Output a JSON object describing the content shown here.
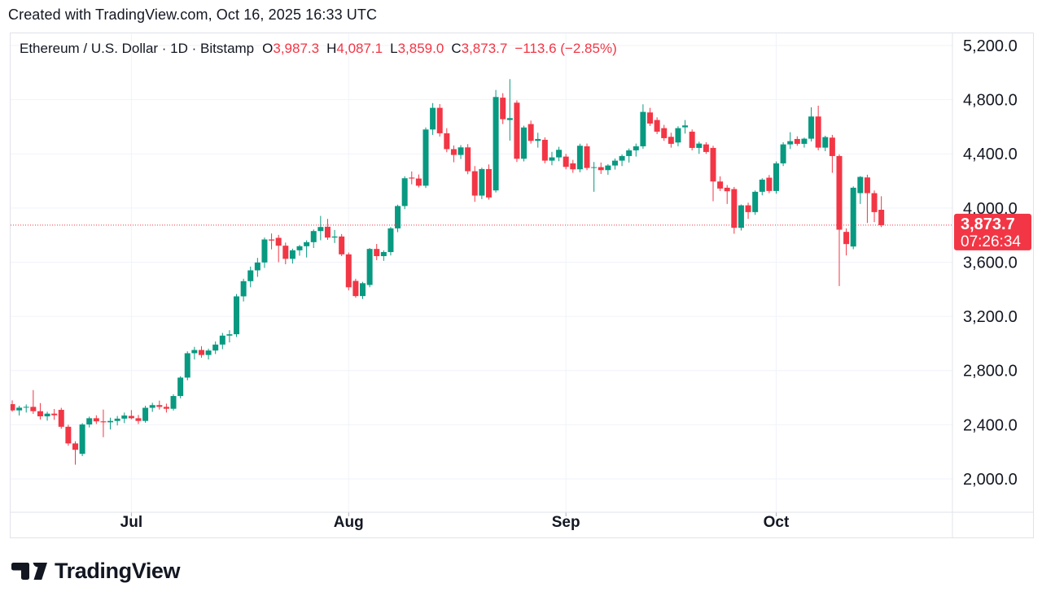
{
  "page": {
    "created_note": "Created with TradingView.com, Oct 16, 2025 16:33 UTC"
  },
  "legend": {
    "title": "Ethereum / U.S. Dollar · 1D · Bitstamp",
    "open_label": "O",
    "open": "3,987.3",
    "high_label": "H",
    "high": "4,087.1",
    "low_label": "L",
    "low": "3,859.0",
    "close_label": "C",
    "close": "3,873.7",
    "change": "−113.6 (−2.85%)"
  },
  "price_axis": {
    "ticks": [
      {
        "label": "5,200.0",
        "value": 5200
      },
      {
        "label": "4,800.0",
        "value": 4800
      },
      {
        "label": "4,400.0",
        "value": 4400
      },
      {
        "label": "4,000.0",
        "value": 4000
      },
      {
        "label": "3,600.0",
        "value": 3600
      },
      {
        "label": "3,200.0",
        "value": 3200
      },
      {
        "label": "2,800.0",
        "value": 2800
      },
      {
        "label": "2,400.0",
        "value": 2400
      },
      {
        "label": "2,000.0",
        "value": 2000
      }
    ],
    "badge": {
      "price": "3,873.7",
      "countdown": "07:26:34"
    }
  },
  "time_axis": {
    "months": [
      {
        "label": "Jul",
        "candle_index": 17
      },
      {
        "label": "Aug",
        "candle_index": 48
      },
      {
        "label": "Sep",
        "candle_index": 79
      },
      {
        "label": "Oct",
        "candle_index": 109
      }
    ]
  },
  "footer": {
    "logo_text": "TradingView"
  },
  "colors": {
    "up": "#089981",
    "down": "#f23645",
    "grid": "#f0f3fa",
    "border": "#e0e3eb",
    "text": "#131722",
    "tick": "#b2b5be",
    "badge_bg": "#f23645",
    "badge_text": "#ffffff"
  },
  "chart_data": {
    "type": "candlestick",
    "title": "Ethereum / U.S. Dollar · 1D · Bitstamp",
    "legend_position": "top-left",
    "grid": true,
    "y_axis_side": "right",
    "ylim": [
      1740,
      5290
    ],
    "y_tick_step": 400,
    "last_price": 3873.7,
    "countdown": "07:26:34",
    "current_bar": {
      "open": 3987.3,
      "high": 4087.1,
      "low": 3859.0,
      "close": 3873.7,
      "change": -113.6,
      "change_pct": -2.85
    },
    "candles": [
      [
        2552,
        2580,
        2496,
        2506
      ],
      [
        2506,
        2540,
        2468,
        2526
      ],
      [
        2526,
        2550,
        2490,
        2532
      ],
      [
        2532,
        2656,
        2480,
        2500
      ],
      [
        2500,
        2560,
        2438,
        2462
      ],
      [
        2462,
        2496,
        2430,
        2482
      ],
      [
        2482,
        2516,
        2436,
        2470
      ],
      [
        2510,
        2525,
        2370,
        2385
      ],
      [
        2385,
        2400,
        2245,
        2262
      ],
      [
        2262,
        2278,
        2105,
        2215
      ],
      [
        2185,
        2412,
        2168,
        2402
      ],
      [
        2402,
        2460,
        2380,
        2448
      ],
      [
        2448,
        2470,
        2405,
        2425
      ],
      [
        2425,
        2512,
        2308,
        2418
      ],
      [
        2418,
        2452,
        2365,
        2428
      ],
      [
        2428,
        2465,
        2395,
        2445
      ],
      [
        2445,
        2490,
        2412,
        2468
      ],
      [
        2465,
        2508,
        2440,
        2448
      ],
      [
        2448,
        2472,
        2405,
        2428
      ],
      [
        2428,
        2540,
        2415,
        2525
      ],
      [
        2525,
        2562,
        2495,
        2545
      ],
      [
        2545,
        2578,
        2512,
        2532
      ],
      [
        2532,
        2556,
        2490,
        2518
      ],
      [
        2518,
        2625,
        2505,
        2612
      ],
      [
        2612,
        2758,
        2595,
        2748
      ],
      [
        2748,
        2942,
        2728,
        2928
      ],
      [
        2928,
        2975,
        2882,
        2952
      ],
      [
        2952,
        2980,
        2895,
        2915
      ],
      [
        2915,
        2962,
        2882,
        2948
      ],
      [
        2948,
        3015,
        2922,
        2992
      ],
      [
        2992,
        3078,
        2958,
        3058
      ],
      [
        3058,
        3098,
        3008,
        3068
      ],
      [
        3068,
        3365,
        3048,
        3348
      ],
      [
        3348,
        3478,
        3310,
        3460
      ],
      [
        3460,
        3568,
        3415,
        3540
      ],
      [
        3540,
        3632,
        3492,
        3598
      ],
      [
        3598,
        3782,
        3558,
        3768
      ],
      [
        3768,
        3812,
        3695,
        3760
      ],
      [
        3780,
        3802,
        3600,
        3722
      ],
      [
        3722,
        3745,
        3585,
        3625
      ],
      [
        3625,
        3700,
        3590,
        3688
      ],
      [
        3688,
        3728,
        3648,
        3718
      ],
      [
        3718,
        3762,
        3635,
        3748
      ],
      [
        3748,
        3842,
        3705,
        3830
      ],
      [
        3830,
        3942,
        3762,
        3860
      ],
      [
        3862,
        3920,
        3765,
        3782
      ],
      [
        3782,
        3838,
        3742,
        3790
      ],
      [
        3790,
        3808,
        3645,
        3658
      ],
      [
        3658,
        3672,
        3392,
        3415
      ],
      [
        3462,
        3478,
        3338,
        3350
      ],
      [
        3350,
        3455,
        3328,
        3445
      ],
      [
        3432,
        3705,
        3415,
        3698
      ],
      [
        3698,
        3735,
        3615,
        3645
      ],
      [
        3645,
        3688,
        3610,
        3675
      ],
      [
        3675,
        3860,
        3650,
        3850
      ],
      [
        3850,
        4025,
        3822,
        4015
      ],
      [
        4015,
        4235,
        3992,
        4220
      ],
      [
        4225,
        4270,
        4175,
        4218
      ],
      [
        4218,
        4248,
        4152,
        4165
      ],
      [
        4165,
        4595,
        4148,
        4580
      ],
      [
        4580,
        4775,
        4540,
        4740
      ],
      [
        4740,
        4768,
        4528,
        4552
      ],
      [
        4552,
        4590,
        4412,
        4435
      ],
      [
        4435,
        4462,
        4338,
        4392
      ],
      [
        4392,
        4465,
        4362,
        4448
      ],
      [
        4448,
        4472,
        4250,
        4272
      ],
      [
        4272,
        4310,
        4046,
        4092
      ],
      [
        4092,
        4298,
        4066,
        4288
      ],
      [
        4288,
        4322,
        4062,
        4078
      ],
      [
        4130,
        4872,
        4115,
        4820
      ],
      [
        4815,
        4848,
        4620,
        4656
      ],
      [
        4650,
        4952,
        4498,
        4664
      ],
      [
        4778,
        4795,
        4340,
        4364
      ],
      [
        4364,
        4608,
        4344,
        4595
      ],
      [
        4620,
        4646,
        4476,
        4496
      ],
      [
        4496,
        4556,
        4446,
        4510
      ],
      [
        4504,
        4522,
        4330,
        4350
      ],
      [
        4350,
        4415,
        4316,
        4374
      ],
      [
        4374,
        4452,
        4346,
        4430
      ],
      [
        4380,
        4400,
        4286,
        4304
      ],
      [
        4330,
        4356,
        4260,
        4286
      ],
      [
        4286,
        4475,
        4264,
        4460
      ],
      [
        4456,
        4476,
        4280,
        4296
      ],
      [
        4296,
        4340,
        4120,
        4302
      ],
      [
        4302,
        4336,
        4252,
        4280
      ],
      [
        4280,
        4324,
        4246,
        4314
      ],
      [
        4314,
        4366,
        4284,
        4350
      ],
      [
        4350,
        4396,
        4310,
        4384
      ],
      [
        4384,
        4440,
        4336,
        4426
      ],
      [
        4426,
        4476,
        4380,
        4456
      ],
      [
        4456,
        4766,
        4438,
        4710
      ],
      [
        4706,
        4740,
        4606,
        4624
      ],
      [
        4650,
        4670,
        4546,
        4564
      ],
      [
        4590,
        4614,
        4496,
        4516
      ],
      [
        4526,
        4556,
        4446,
        4474
      ],
      [
        4484,
        4604,
        4456,
        4590
      ],
      [
        4596,
        4650,
        4550,
        4610
      ],
      [
        4564,
        4580,
        4426,
        4444
      ],
      [
        4444,
        4490,
        4400,
        4476
      ],
      [
        4470,
        4486,
        4400,
        4414
      ],
      [
        4444,
        4460,
        4050,
        4196
      ],
      [
        4196,
        4234,
        4126,
        4144
      ],
      [
        4150,
        4170,
        4030,
        4124
      ],
      [
        4140,
        4156,
        3810,
        3854
      ],
      [
        3854,
        4026,
        3834,
        4020
      ],
      [
        4020,
        4040,
        3920,
        3970
      ],
      [
        3970,
        4130,
        3950,
        4120
      ],
      [
        4120,
        4220,
        4094,
        4210
      ],
      [
        4224,
        4244,
        4110,
        4126
      ],
      [
        4126,
        4344,
        4106,
        4330
      ],
      [
        4330,
        4486,
        4310,
        4470
      ],
      [
        4470,
        4560,
        4436,
        4494
      ],
      [
        4510,
        4530,
        4460,
        4474
      ],
      [
        4474,
        4520,
        4446,
        4512
      ],
      [
        4512,
        4744,
        4492,
        4676
      ],
      [
        4676,
        4756,
        4426,
        4446
      ],
      [
        4446,
        4534,
        4420,
        4524
      ],
      [
        4520,
        4540,
        4260,
        4384
      ],
      [
        4384,
        4396,
        3424,
        3840
      ],
      [
        3824,
        3850,
        3650,
        3734
      ],
      [
        3716,
        4160,
        3696,
        4150
      ],
      [
        4110,
        4236,
        4030,
        4230
      ],
      [
        4226,
        4246,
        3890,
        4110
      ],
      [
        4110,
        4130,
        3896,
        3970
      ],
      [
        3987.3,
        4087.1,
        3859.0,
        3873.7
      ]
    ]
  }
}
